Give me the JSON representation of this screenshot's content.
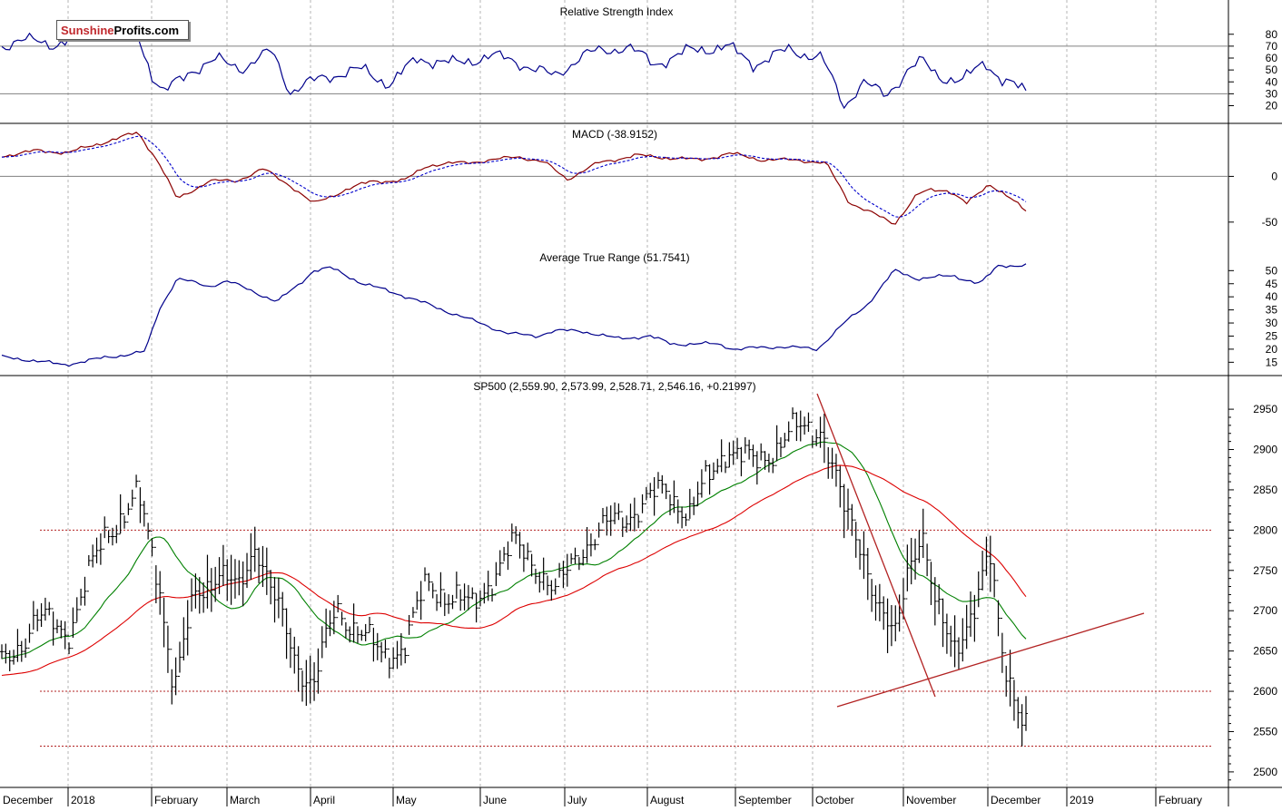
{
  "logo": {
    "part1": "Sunshine",
    "part2": "Profits.com"
  },
  "panels": {
    "rsi": {
      "title": "Relative Strength Index",
      "ticks": [
        80,
        70,
        60,
        50,
        40,
        30,
        20
      ],
      "levels": [
        70,
        30
      ],
      "range": [
        12,
        92
      ]
    },
    "macd": {
      "title": "MACD (-38.9152)",
      "ticks": [
        0,
        -50
      ],
      "range": [
        -70,
        52
      ]
    },
    "atr": {
      "title": "Average True Range (51.7541)",
      "ticks": [
        50,
        45,
        40,
        35,
        30,
        25,
        20,
        15
      ],
      "range": [
        12,
        56
      ]
    },
    "price": {
      "title": "SP500 (2,559.90, 2,573.99, 2,528.71, 2,546.16, +0.21997)",
      "ticks": [
        2950,
        2900,
        2850,
        2800,
        2750,
        2700,
        2650,
        2600,
        2550,
        2500
      ],
      "range": [
        2483,
        2985
      ]
    }
  },
  "months": [
    "December",
    "2018",
    "February",
    "March",
    "April",
    "May",
    "June",
    "July",
    "August",
    "September",
    "October",
    "November",
    "December",
    "2019",
    "February"
  ],
  "colors": {
    "rsi": "#00008b",
    "macd": "#8b0000",
    "signal": "#0000cc",
    "sma_fast": "#008000",
    "sma_slow": "#dd0000",
    "trend": "#b22222",
    "bars": "#000000"
  },
  "chart_data": {
    "type": "line",
    "title": "SP500 (2,559.90, 2,573.99, 2,528.71, 2,546.16, +0.21997)",
    "x": [
      "2017-12-15",
      "2018-01-02",
      "2018-02-01",
      "2018-03-01",
      "2018-04-02",
      "2018-05-01",
      "2018-06-01",
      "2018-07-02",
      "2018-08-01",
      "2018-09-04",
      "2018-10-01",
      "2018-11-01",
      "2018-12-03",
      "2018-12-24"
    ],
    "series": [
      {
        "name": "SP500",
        "values": [
          2680,
          2695,
          2760,
          2720,
          2640,
          2655,
          2735,
          2720,
          2815,
          2895,
          2925,
          2720,
          2790,
          2546
        ]
      },
      {
        "name": "Relative Strength Index",
        "values": [
          70,
          78,
          62,
          55,
          40,
          45,
          58,
          55,
          62,
          65,
          55,
          42,
          52,
          32
        ]
      },
      {
        "name": "MACD (-38.9152)",
        "values": [
          22,
          30,
          -15,
          -5,
          -28,
          -5,
          20,
          0,
          20,
          20,
          10,
          -45,
          -10,
          -39
        ]
      },
      {
        "name": "Average True Range (51.7541)",
        "values": [
          16,
          16,
          44,
          40,
          48,
          38,
          23,
          26,
          21,
          19,
          19,
          49,
          44,
          51.75
        ]
      }
    ],
    "horizontal_levels_price": [
      2800,
      2600,
      2532
    ],
    "ylim_price": [
      2483,
      2985
    ]
  }
}
